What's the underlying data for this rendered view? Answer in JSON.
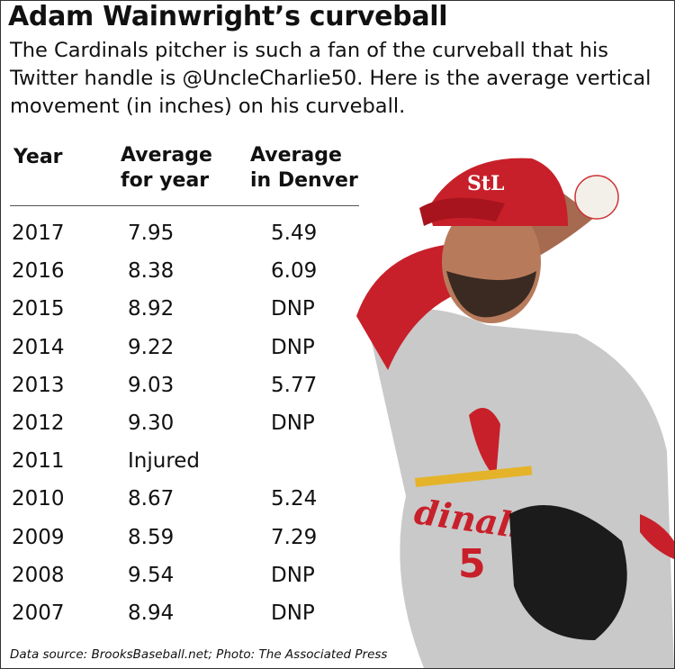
{
  "title": "Adam Wainwright’s curveball",
  "subtitle": "The Cardinals pitcher is such a fan of the curveball that his Twitter handle is @UncleCharlie50. Here is the average vertical movement (in inches) on his curveball.",
  "source": "Data source: BrooksBaseball.net; Photo: The Associated Press",
  "chart_data": {
    "type": "table",
    "columns": [
      "Year",
      "Average for year",
      "Average in Denver"
    ],
    "rows": [
      [
        "2017",
        "7.95",
        "5.49"
      ],
      [
        "2016",
        "8.38",
        "6.09"
      ],
      [
        "2015",
        "8.92",
        "DNP"
      ],
      [
        "2014",
        "9.22",
        "DNP"
      ],
      [
        "2013",
        "9.03",
        "5.77"
      ],
      [
        "2012",
        "9.30",
        "DNP"
      ],
      [
        "2011",
        "Injured",
        ""
      ],
      [
        "2010",
        "8.67",
        "5.24"
      ],
      [
        "2009",
        "8.59",
        "7.29"
      ],
      [
        "2008",
        "9.54",
        "DNP"
      ],
      [
        "2007",
        "8.94",
        "DNP"
      ]
    ]
  },
  "photo": {
    "jersey_lettering": "Cardinals 50",
    "cap_logo": "StL"
  }
}
